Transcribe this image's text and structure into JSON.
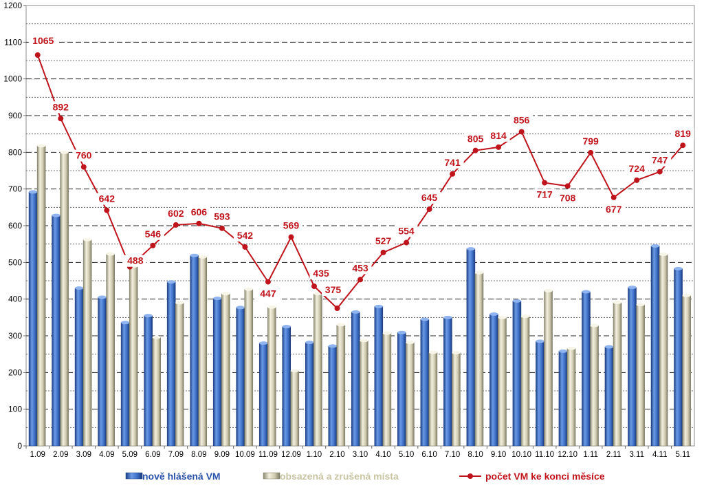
{
  "chart_data": {
    "type": "bar",
    "categories": [
      "1.09",
      "2.09",
      "3.09",
      "4.09",
      "5.09",
      "6.09",
      "7.09",
      "8.09",
      "9.09",
      "10.09",
      "11.09",
      "12.09",
      "1.10",
      "2.10",
      "3.10",
      "4.10",
      "5.10",
      "6.10",
      "7.10",
      "8.10",
      "9.10",
      "10.10",
      "11.10",
      "12.10",
      "1.11",
      "2.11",
      "3.11",
      "4.11",
      "5.11"
    ],
    "ylim": [
      0,
      1200
    ],
    "yticks": [
      "0",
      "100",
      "200",
      "300",
      "400",
      "500",
      "600",
      "700",
      "800",
      "900",
      "1000",
      "1100",
      "1200"
    ],
    "grid": true,
    "legend_position": "bottom",
    "series": [
      {
        "name": "nově hlášená VM",
        "type": "bar",
        "color": "#3a6fc4",
        "values": [
          692,
          628,
          430,
          405,
          336,
          355,
          447,
          519,
          402,
          377,
          280,
          325,
          282,
          272,
          365,
          380,
          309,
          345,
          350,
          537,
          359,
          395,
          285,
          258,
          420,
          270,
          432,
          545,
          483
        ]
      },
      {
        "name": "obsazená a zrušená místa",
        "type": "bar",
        "color": "#cfcab0",
        "values": [
          818,
          800,
          562,
          523,
          490,
          296,
          390,
          515,
          415,
          427,
          378,
          205,
          415,
          330,
          287,
          307,
          282,
          255,
          254,
          472,
          350,
          353,
          423,
          266,
          328,
          391,
          385,
          522,
          410
        ]
      },
      {
        "name": "počet VM ke konci měsíce",
        "type": "line",
        "color": "#c0141c",
        "values": [
          1065,
          892,
          760,
          642,
          488,
          546,
          602,
          606,
          593,
          542,
          447,
          569,
          435,
          375,
          453,
          527,
          554,
          645,
          741,
          805,
          814,
          856,
          717,
          708,
          799,
          677,
          724,
          747,
          819
        ],
        "labels": [
          "1065",
          "892",
          "760",
          "642",
          "488",
          "546",
          "602",
          "606",
          "593",
          "542",
          "447",
          "569",
          "435",
          "375",
          "453",
          "527",
          "554",
          "645",
          "741",
          "805",
          "814",
          "856",
          "717",
          "708",
          "799",
          "677",
          "724",
          "747",
          "819"
        ]
      }
    ]
  }
}
